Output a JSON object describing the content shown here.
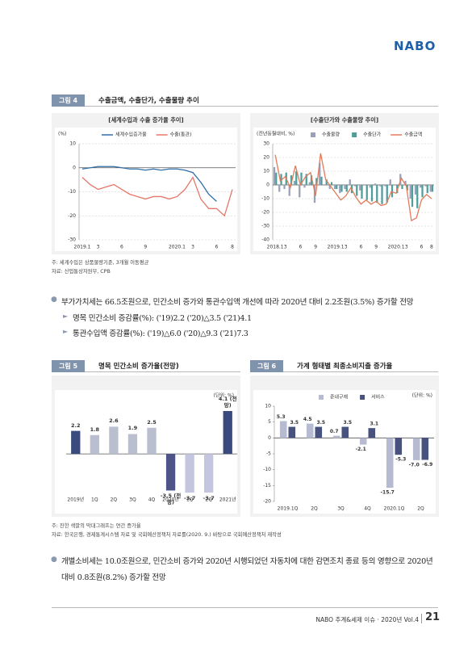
{
  "header": {
    "logo": "NABO"
  },
  "figure4": {
    "label": "그림 4",
    "title": "수출금액, 수출단가, 수출물량 추이",
    "notes": [
      "주: 세계수입은 상품물량기준, 3개월 이동평균",
      "자료: 산업통상자원부, CPB"
    ]
  },
  "chart_data": [
    {
      "type": "line",
      "title": "[세계수입과 수출 증가율 추이]",
      "y_unit": "(%)",
      "categories": [
        "2019.1",
        null,
        "3",
        null,
        null,
        "6",
        null,
        null,
        "9",
        null,
        null,
        null,
        "2020.1",
        null,
        "3",
        null,
        null,
        "6",
        null,
        "8"
      ],
      "series": [
        {
          "name": "세계수입증가율",
          "color": "#2f6eaa",
          "values": [
            -0.5,
            0,
            0.5,
            0.5,
            0.5,
            0,
            -0.5,
            -0.5,
            -1,
            -0.5,
            -1,
            -0.5,
            -0.5,
            -1,
            -2,
            -6,
            -11,
            -14,
            null,
            null
          ]
        },
        {
          "name": "수출(통관)",
          "color": "#e5776a",
          "values": [
            -4,
            -7,
            -9,
            -8,
            -7,
            -9,
            -11,
            -12,
            -13,
            -12,
            -12,
            -13,
            -12,
            -9,
            -4,
            -13,
            -17,
            -17,
            -20,
            -9
          ]
        }
      ],
      "ylim": [
        -30,
        10
      ],
      "yticks": [
        10,
        0,
        -10,
        -20,
        -30
      ],
      "grid": true
    },
    {
      "type": "combo",
      "title": "[수출단가와 수출물량 추이]",
      "y_unit": "(전년동월대비, %)",
      "categories": [
        "2018.1",
        null,
        "3",
        null,
        null,
        "6",
        null,
        null,
        "9",
        null,
        null,
        null,
        "2019.1",
        null,
        "3",
        null,
        null,
        "6",
        null,
        null,
        "9",
        null,
        null,
        null,
        "2020.1",
        null,
        "3",
        null,
        null,
        "6",
        null,
        "8"
      ],
      "series": [
        {
          "name": "수출물량",
          "type": "bar",
          "color": "#9aa0b8",
          "values": [
            13,
            -5,
            -3,
            -8,
            3,
            -9,
            -2,
            2,
            -13,
            16,
            0,
            -3,
            -3,
            -6,
            -3,
            4,
            -1,
            -4,
            0,
            -2,
            1,
            -1,
            -1,
            4,
            0,
            8,
            3,
            -10,
            -7,
            -2,
            -1,
            -5
          ]
        },
        {
          "name": "수출단가",
          "type": "bar",
          "color": "#4f9e9a",
          "values": [
            9,
            8,
            9,
            7,
            10,
            9,
            8,
            7,
            5,
            6,
            4,
            2,
            -3,
            -5,
            -5,
            -6,
            -8,
            -10,
            -11,
            -12,
            -13,
            -14,
            -13,
            -9,
            -6,
            -3,
            -4,
            -16,
            -17,
            -9,
            -6,
            -5
          ]
        },
        {
          "name": "수출금액",
          "type": "line",
          "color": "#e27b5a",
          "values": [
            22,
            3,
            6,
            -2,
            14,
            0,
            6,
            9,
            -8,
            23,
            4,
            -1,
            -6,
            -11,
            -8,
            -2,
            -9,
            -14,
            -11,
            -14,
            -12,
            -15,
            -14,
            -5,
            -6,
            5,
            -1,
            -26,
            -24,
            -11,
            -7,
            -10
          ]
        }
      ],
      "ylim": [
        -40,
        30
      ],
      "yticks": [
        30,
        20,
        10,
        0,
        -10,
        -20,
        -30,
        -40
      ],
      "grid": true
    },
    {
      "type": "bar",
      "y_unit": "(단위: %)",
      "categories": [
        "2019년",
        "1Q",
        "2Q",
        "3Q",
        "4Q",
        "2020년",
        "1Q",
        "2Q",
        "2021년"
      ],
      "values": [
        2.2,
        1.8,
        2.6,
        1.9,
        2.5,
        -3.5,
        -3.7,
        -3.7,
        4.1
      ],
      "value_labels": [
        "2.2",
        "1.8",
        "2.6",
        "1.9",
        "2.5",
        "-3.5 (전망)",
        "-3.7",
        "-3.7",
        "4.1 (전망)"
      ],
      "colors": [
        "#3b4a7c",
        "#b9bfcf",
        "#b9bfcf",
        "#b9bfcf",
        "#b9bfcf",
        "#4e5487",
        "#c4c5de",
        "#c4c5de",
        "#3b4a7c"
      ]
    },
    {
      "type": "bar",
      "y_unit": "(단위: %)",
      "categories": [
        "2019.1Q",
        "2Q",
        "3Q",
        "4Q",
        "2020.1Q",
        "2Q"
      ],
      "series": [
        {
          "name": "준내구재",
          "color": "#b6bbd2",
          "values": [
            5.3,
            4.5,
            0.7,
            -2.1,
            -15.7,
            -7.0
          ],
          "value_labels": [
            "5.3",
            "4.5",
            "0.7",
            "-2.1",
            "-15.7",
            "-7.0"
          ]
        },
        {
          "name": "서비스",
          "color": "#48527e",
          "values": [
            3.5,
            3.5,
            3.5,
            3.1,
            -5.3,
            -6.9
          ],
          "value_labels": [
            "3.5",
            "3.5",
            "3.5",
            "3.1",
            "-5.3",
            "-6.9"
          ]
        }
      ],
      "ylim": [
        -20,
        10
      ],
      "yticks": [
        10,
        5,
        0,
        -5,
        -10,
        -15,
        -20
      ],
      "grid": false
    }
  ],
  "paragraph1": {
    "text": "부가가치세는 66.5조원으로, 민간소비 증가와 통관수입액 개선에 따라 2020년 대비 2.2조원(3.5%) 증가할 전망",
    "subs": [
      "명목 민간소비 증감률(%): ('19)2.2 ('20)△3.5 ('21)4.1",
      "통관수입액 증감률(%): ('19)△6.0 ('20)△9.3 ('21)7.3"
    ]
  },
  "figure5": {
    "label": "그림 5",
    "title": "명목 민간소비 증가율(전망)"
  },
  "figure6": {
    "label": "그림 6",
    "title": "가계 형태별 최종소비지출 증가율"
  },
  "figure56_notes": [
    "주: 진한 색깔의 막대그래프는 연간 증가율",
    "자료: 한국은행, 경제통계시스템 자료 및 국회예산정책처 자료를(2020. 9.) 바탕으로 국회예산정책처 재작성"
  ],
  "paragraph2": {
    "text": "개별소비세는 10.0조원으로, 민간소비 증가와 2020년 시행되었던 자동차에 대한 감면조치 종료 등의 영향으로 2020년 대비 0.8조원(8.2%) 증가할 전망"
  },
  "footer": {
    "text": "NABO 추계&세제 이슈 · 2020년 Vol.4",
    "page": "21"
  }
}
